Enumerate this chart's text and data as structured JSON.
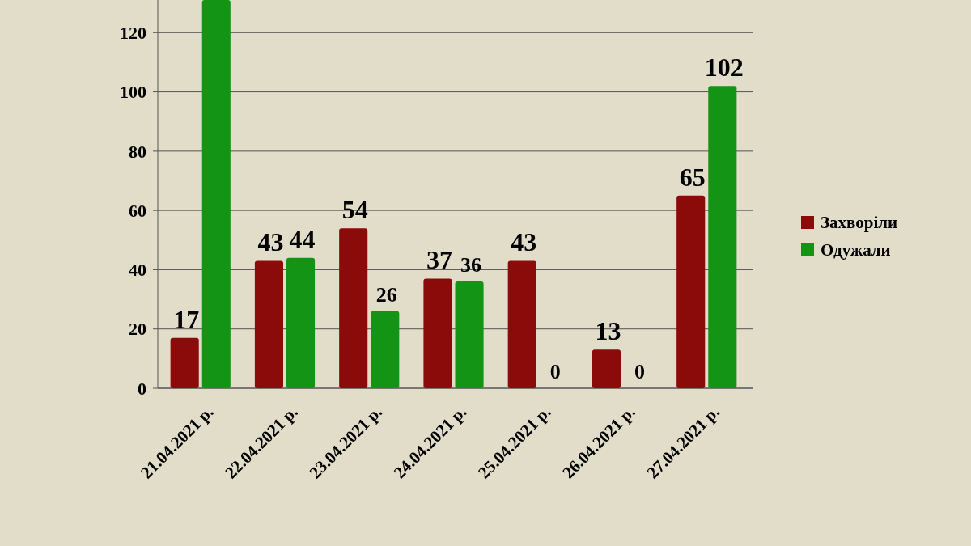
{
  "chart_data": {
    "type": "bar",
    "categories": [
      "21.04.2021 р.",
      "22.04.2021 р.",
      "23.04.2021 р.",
      "24.04.2021 р.",
      "25.04.2021 р.",
      "26.04.2021 р.",
      "27.04.2021 р."
    ],
    "series": [
      {
        "name": "Захворіли",
        "color": "#8b0a0a",
        "values": [
          17,
          43,
          54,
          37,
          43,
          13,
          65
        ],
        "value_labels": [
          "17",
          "43",
          "54",
          "37",
          "43",
          "13",
          "65"
        ]
      },
      {
        "name": "Одужали",
        "color": "#149414",
        "values": [
          131,
          44,
          26,
          36,
          0,
          0,
          102
        ],
        "value_labels": [
          null,
          "44",
          "26",
          "36",
          "0",
          "0",
          "102"
        ]
      }
    ],
    "ylim": [
      0,
      131
    ],
    "yticks": [
      0,
      20,
      40,
      60,
      80,
      100,
      120
    ],
    "grid": "y",
    "legend": "right"
  }
}
